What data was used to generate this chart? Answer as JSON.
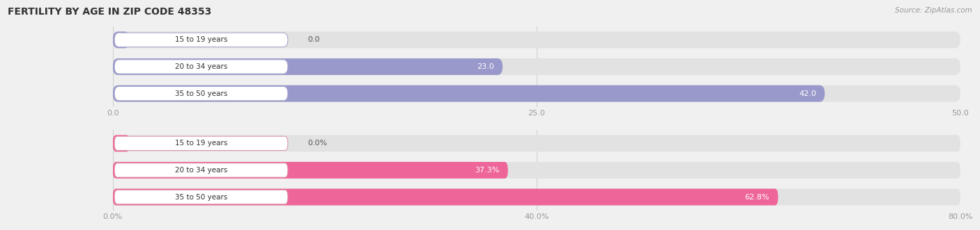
{
  "title": "FERTILITY BY AGE IN ZIP CODE 48353",
  "source": "Source: ZipAtlas.com",
  "top_bars": {
    "categories": [
      "15 to 19 years",
      "20 to 34 years",
      "35 to 50 years"
    ],
    "values": [
      0.0,
      23.0,
      42.0
    ],
    "xlim": [
      0,
      50
    ],
    "xticks": [
      0.0,
      25.0,
      50.0
    ],
    "xtick_labels": [
      "0.0",
      "25.0",
      "50.0"
    ],
    "bar_color": "#9999cc",
    "bar_bg_color": "#d8d8ee",
    "pill_border_color": "#aaaacc"
  },
  "bottom_bars": {
    "categories": [
      "15 to 19 years",
      "20 to 34 years",
      "35 to 50 years"
    ],
    "values": [
      0.0,
      37.3,
      62.8
    ],
    "xlim": [
      0,
      80
    ],
    "xticks": [
      0.0,
      40.0,
      80.0
    ],
    "xtick_labels": [
      "0.0%",
      "40.0%",
      "80.0%"
    ],
    "bar_color": "#ee6699",
    "bar_bg_color": "#f5c0d0",
    "pill_border_color": "#dd99aa"
  },
  "bg_color": "#f0f0f0",
  "bar_track_color": "#e2e2e2",
  "pill_bg_color": "#ffffff",
  "title_color": "#333333",
  "source_color": "#999999",
  "tick_label_color": "#999999",
  "category_label_color": "#333333",
  "value_label_dark": "#555555",
  "value_label_light": "#ffffff"
}
